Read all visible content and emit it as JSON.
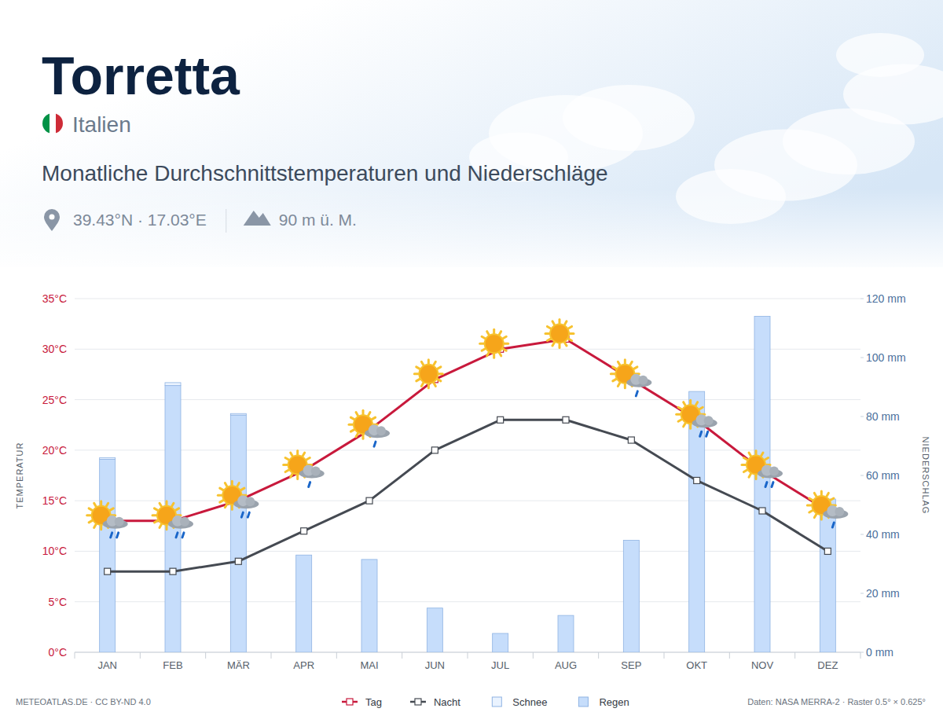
{
  "chart_data": {
    "type": "bar",
    "title": "Torretta",
    "country": "Italien",
    "subtitle": "Monatliche Durchschnittstemperaturen und Niederschläge",
    "location": "39.43°N · 17.03°E",
    "elevation": "90 m ü. M.",
    "credit": "METEOATLAS.DE · CC BY-ND 4.0",
    "source": "Daten: NASA MERRA-2 · Raster 0.5° × 0.625°",
    "y_label": "TEMPERATUR",
    "y2_label": "NIEDERSCHLAG",
    "categories": [
      "JAN",
      "FEB",
      "MÄR",
      "APR",
      "MAI",
      "JUN",
      "JUL",
      "AUG",
      "SEP",
      "OKT",
      "NOV",
      "DEZ"
    ],
    "series": [
      {
        "name": "Tag",
        "type": "line",
        "color": "#c8193c",
        "marker": "square",
        "values": [
          13,
          13,
          15,
          18,
          22,
          27,
          30,
          31,
          27,
          23,
          18,
          14
        ]
      },
      {
        "name": "Nacht",
        "type": "line",
        "color": "#454a52",
        "marker": "square",
        "values": [
          8,
          8,
          9,
          12,
          15,
          20,
          23,
          23,
          21,
          17,
          14,
          10
        ]
      },
      {
        "name": "Schnee",
        "type": "bar",
        "axis": "y2",
        "color": "#eaf3ff",
        "values": [
          0.5,
          1,
          0.5,
          0,
          0,
          0,
          0,
          0,
          0,
          0,
          0,
          0
        ]
      },
      {
        "name": "Regen",
        "type": "bar",
        "axis": "y2",
        "color": "#c6ddfb",
        "values": [
          65.5,
          90.5,
          80.5,
          33,
          31.5,
          15,
          6.4,
          12.5,
          38,
          88.5,
          114,
          52
        ]
      }
    ],
    "stacked": true,
    "ylim": [
      0,
      35
    ],
    "yticks": [
      {
        "value": 0,
        "label": "0°C"
      },
      {
        "value": 5,
        "label": "5°C"
      },
      {
        "value": 10,
        "label": "10°C"
      },
      {
        "value": 15,
        "label": "15°C"
      },
      {
        "value": 20,
        "label": "20°C"
      },
      {
        "value": 25,
        "label": "25°C"
      },
      {
        "value": 30,
        "label": "30°C"
      },
      {
        "value": 35,
        "label": "35°C"
      }
    ],
    "y2lim": [
      0,
      120
    ],
    "y2ticks": [
      {
        "value": 0,
        "label": "0 mm"
      },
      {
        "value": 20,
        "label": "20 mm"
      },
      {
        "value": 40,
        "label": "40 mm"
      },
      {
        "value": 60,
        "label": "60 mm"
      },
      {
        "value": 80,
        "label": "80 mm"
      },
      {
        "value": 100,
        "label": "100 mm"
      },
      {
        "value": 120,
        "label": "120 mm"
      }
    ],
    "grid": true,
    "legend": "bottom"
  }
}
